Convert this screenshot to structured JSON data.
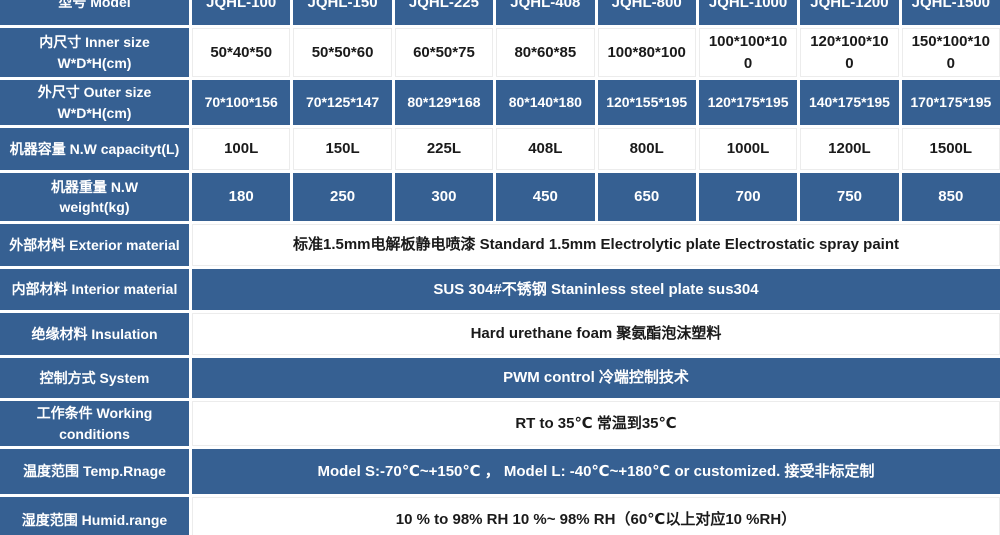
{
  "table": {
    "colors": {
      "blue": "#366092",
      "grid_line": "#ffffff",
      "dark_text": "#1a1a1a",
      "light_text": "#ffffff"
    },
    "model_row": {
      "label": "型号 Model",
      "models": [
        "JQHL-100",
        "JQHL-150",
        "JQHL-225",
        "JQHL-408",
        "JQHL-800",
        "JQHL-1000",
        "JQHL-1200",
        "JQHL-1500"
      ]
    },
    "spec_rows": [
      {
        "label": "内尺寸 Inner size\nW*D*H(cm)",
        "values": [
          "50*40*50",
          "50*50*60",
          "60*50*75",
          "80*60*85",
          "100*80*100",
          "100*100*100",
          "120*100*100",
          "150*100*100"
        ]
      },
      {
        "label": "外尺寸 Outer size\nW*D*H(cm)",
        "values": [
          "70*100*156",
          "70*125*147",
          "80*129*168",
          "80*140*180",
          "120*155*195",
          "120*175*195",
          "140*175*195",
          "170*175*195"
        ]
      },
      {
        "label": "机器容量 N.W capacityt(L)",
        "values": [
          "100L",
          "150L",
          "225L",
          "408L",
          "800L",
          "1000L",
          "1200L",
          "1500L"
        ]
      },
      {
        "label": "机器重量 N.W\nweight(kg)",
        "values": [
          "180",
          "250",
          "300",
          "450",
          "650",
          "700",
          "750",
          "850"
        ]
      }
    ],
    "merged_rows": [
      {
        "label": "外部材料 Exterior material",
        "value": "标准1.5mm电解板静电喷漆  Standard 1.5mm Electrolytic plate Electrostatic spray paint"
      },
      {
        "label": "内部材料 Interior material",
        "value": "SUS 304#不锈钢 Staninless steel plate sus304"
      },
      {
        "label": "绝缘材料 Insulation",
        "value": "Hard urethane foam 聚氨酯泡沫塑料"
      },
      {
        "label": "控制方式 System",
        "value": "PWM control 冷端控制技术"
      },
      {
        "label": "工作条件 Working\nconditions",
        "value": "RT to 35℃ 常温到35℃"
      },
      {
        "label": "温度范围 Temp.Rnage",
        "value": "Model S:-70℃~+150℃ ，  Model L: -40℃~+180℃ or customized. 接受非标定制"
      },
      {
        "label": "湿度范围 Humid.range",
        "value": "10 % to 98% RH 10 %~ 98% RH（60℃以上对应10 %RH）"
      }
    ]
  }
}
